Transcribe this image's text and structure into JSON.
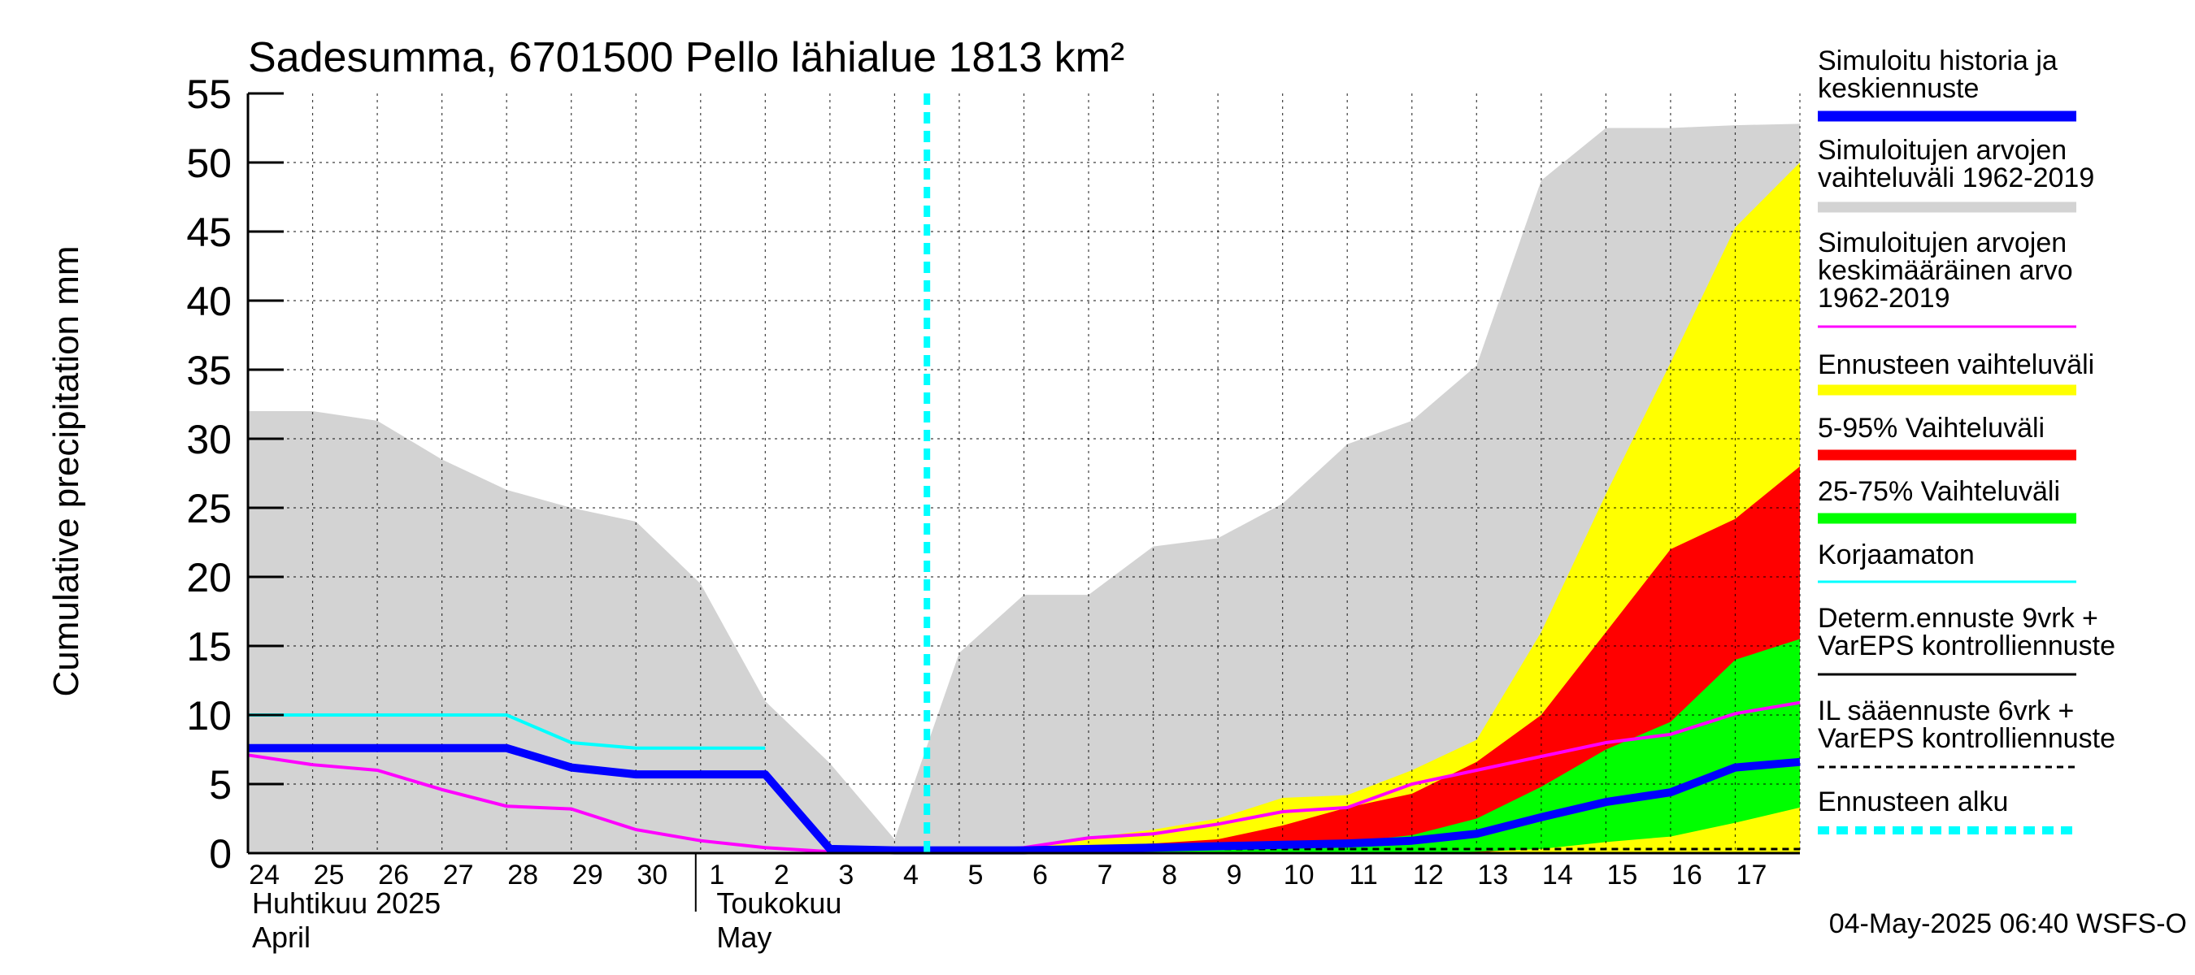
{
  "chart_data": {
    "type": "area",
    "title": "Sadesumma, 6701500 Pello lähialue 1813 km²",
    "ylabel": "Cumulative precipitation   mm",
    "ylim": [
      0,
      55
    ],
    "yticks": [
      "0",
      "5",
      "10",
      "15",
      "20",
      "25",
      "30",
      "35",
      "40",
      "45",
      "50",
      "55"
    ],
    "x_day_labels": [
      "24",
      "25",
      "26",
      "27",
      "28",
      "29",
      "30",
      "1",
      "2",
      "3",
      "4",
      "5",
      "6",
      "7",
      "8",
      "9",
      "10",
      "11",
      "12",
      "13",
      "14",
      "15",
      "16",
      "17"
    ],
    "month_labels": [
      {
        "fi": "Huhtikuu  2025",
        "en": "April"
      },
      {
        "fi": "Toukokuu",
        "en": "May"
      }
    ],
    "forecast_start_day": 10.5,
    "timestamp": "04-May-2025 06:40 WSFS-O",
    "legend": [
      {
        "lines": [
          "Simuloitu historia ja",
          "keskiennuste"
        ],
        "color": "#0000ff",
        "style": "thick"
      },
      {
        "lines": [
          "Simuloitujen arvojen",
          "vaihteluväli 1962-2019"
        ],
        "color": "#d3d3d3",
        "style": "thick"
      },
      {
        "lines": [
          "Simuloitujen arvojen",
          "keskimääräinen arvo",
          "   1962-2019"
        ],
        "color": "#ff00ff",
        "style": "thin"
      },
      {
        "lines": [
          "Ennusteen vaihteluväli"
        ],
        "color": "#ffff00",
        "style": "thick"
      },
      {
        "lines": [
          "5-95% Vaihteluväli"
        ],
        "color": "#ff0000",
        "style": "thick"
      },
      {
        "lines": [
          "25-75% Vaihteluväli"
        ],
        "color": "#00ff00",
        "style": "thick"
      },
      {
        "lines": [
          "Korjaamaton"
        ],
        "color": "#00ffff",
        "style": "thin"
      },
      {
        "lines": [
          "Determ.ennuste 9vrk +",
          "VarEPS kontrolliennuste"
        ],
        "color": "#000000",
        "style": "thin"
      },
      {
        "lines": [
          "IL sääennuste 6vrk  +",
          "  VarEPS kontrolliennuste"
        ],
        "color": "#000000",
        "style": "dashed"
      },
      {
        "lines": [
          "Ennusteen alku"
        ],
        "color": "#00ffff",
        "style": "thickdash"
      }
    ],
    "history_range": {
      "x": [
        0,
        1,
        2,
        3,
        4,
        5,
        6,
        7,
        8,
        9,
        10
      ],
      "upper": [
        32,
        32,
        31.3,
        28.5,
        26.3,
        25,
        24,
        19.5,
        11,
        6.5,
        1
      ],
      "lower": [
        0,
        0,
        0,
        0,
        0,
        0,
        0,
        0,
        0,
        0,
        0
      ]
    },
    "forecast_range": {
      "x": [
        10,
        11,
        12,
        13,
        14,
        15,
        16,
        17,
        18,
        19,
        20,
        21,
        22,
        23,
        24
      ],
      "upper": [
        1,
        14.5,
        18.7,
        18.7,
        22.2,
        22.8,
        25.3,
        29.6,
        31.3,
        35.3,
        48.7,
        52.5,
        52.5,
        52.7,
        52.8
      ],
      "lower": [
        0,
        0,
        0,
        0,
        0,
        0,
        0,
        0,
        0,
        0,
        0,
        0,
        0,
        0,
        0
      ]
    },
    "ensemble_range": {
      "x": [
        10,
        11,
        12,
        13,
        14,
        15,
        16,
        17,
        18,
        19,
        20,
        21,
        22,
        23,
        24
      ],
      "upper": [
        0,
        0,
        0.3,
        1.1,
        1.7,
        2.5,
        4,
        4.2,
        6,
        8.2,
        16,
        26,
        35.5,
        45.3,
        50
      ],
      "lower": [
        0,
        0,
        0,
        0,
        0,
        0,
        0,
        0,
        0,
        0,
        0,
        0,
        0,
        0,
        0
      ]
    },
    "band_5_95": {
      "x": [
        10,
        11,
        12,
        13,
        14,
        15,
        16,
        17,
        18,
        19,
        20,
        21,
        22,
        23,
        24
      ],
      "upper": [
        0,
        0,
        0.2,
        0.5,
        0.7,
        1,
        2,
        3.3,
        4.3,
        6.6,
        10,
        16,
        22,
        24.2,
        28
      ],
      "lower": [
        0,
        0,
        0,
        0,
        0,
        0,
        0,
        0,
        0,
        0,
        0.5,
        1.5,
        1.8,
        2.5,
        3.5
      ]
    },
    "band_25_75": {
      "x": [
        10,
        11,
        12,
        13,
        14,
        15,
        16,
        17,
        18,
        19,
        20,
        21,
        22,
        23,
        24
      ],
      "upper": [
        0,
        0,
        0,
        0.1,
        0.2,
        0.3,
        0.5,
        0.8,
        1.3,
        2.5,
        4.8,
        7.5,
        9.5,
        14,
        15.5
      ],
      "lower": [
        0,
        0,
        0,
        0,
        0,
        0,
        0,
        0,
        0,
        0.1,
        0.3,
        0.8,
        1.2,
        2.2,
        3.3
      ]
    },
    "series": [
      {
        "name": "Simuloitu historia ja keskiennuste",
        "x": [
          0,
          1,
          2,
          3,
          4,
          5,
          6,
          7,
          8,
          9,
          10,
          11,
          12,
          13,
          14,
          15,
          16,
          17,
          18,
          19,
          20,
          21,
          22,
          23,
          24
        ],
        "values": [
          7.6,
          7.6,
          7.6,
          7.6,
          7.6,
          6.2,
          5.7,
          5.7,
          5.7,
          0.3,
          0.2,
          0.2,
          0.2,
          0.3,
          0.4,
          0.5,
          0.6,
          0.7,
          0.9,
          1.4,
          2.6,
          3.7,
          4.4,
          6.2,
          6.6
        ]
      },
      {
        "name": "Korjaamaton",
        "x": [
          0,
          1,
          2,
          3,
          4,
          5,
          6,
          7,
          8
        ],
        "values": [
          10,
          10,
          10,
          10,
          10,
          8,
          7.6,
          7.6,
          7.6
        ]
      },
      {
        "name": "Simuloitujen arvojen keskimääräinen arvo 1962-2019",
        "x": [
          0,
          1,
          2,
          3,
          4,
          5,
          6,
          7,
          8,
          9,
          10,
          11,
          12,
          13,
          14,
          15,
          16,
          17,
          18,
          19,
          20,
          21,
          22,
          23,
          24
        ],
        "values": [
          7.1,
          6.4,
          6,
          4.6,
          3.4,
          3.2,
          1.7,
          0.9,
          0.4,
          0.1,
          0.1,
          0.1,
          0.4,
          1.1,
          1.4,
          2.1,
          3,
          3.3,
          5,
          6,
          7,
          8,
          8.6,
          10.1,
          10.9
        ]
      },
      {
        "name": "Determ.ennuste 9vrk + VarEPS kontrolliennuste",
        "x": [
          10,
          11,
          12,
          13,
          14,
          15,
          16,
          17,
          18,
          19,
          20,
          21,
          22,
          23,
          24
        ],
        "values": [
          0,
          0,
          0,
          0,
          0,
          0,
          0,
          0,
          0,
          0,
          0,
          0,
          0,
          0,
          0
        ]
      }
    ]
  }
}
